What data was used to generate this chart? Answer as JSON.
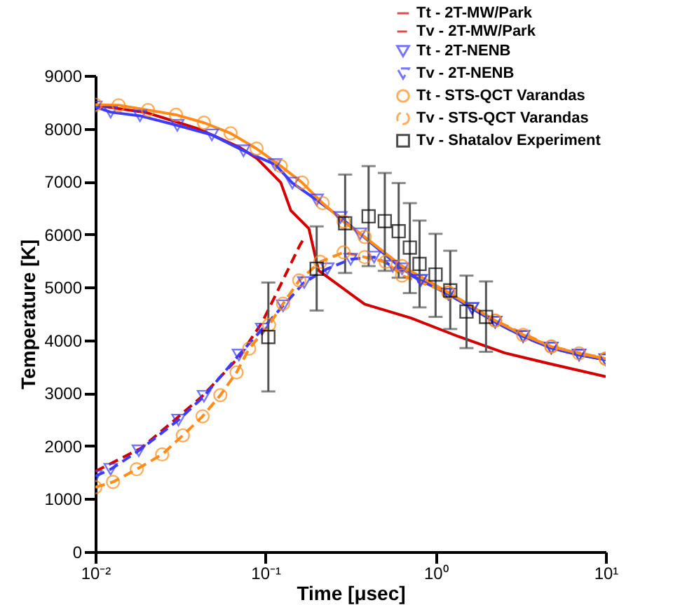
{
  "chart_data": {
    "type": "line",
    "xlabel": "Time [μsec]",
    "ylabel": "Temperature [K]",
    "log": "x",
    "grid": false,
    "legend": "top right",
    "xlim": [
      0.01,
      10
    ],
    "xticks": [
      {
        "value": 0.01,
        "label": "10⁻²"
      },
      {
        "value": 0.1,
        "label": "10⁻¹"
      },
      {
        "value": 1,
        "label": "10⁰"
      },
      {
        "value": 10,
        "label": "10¹"
      }
    ],
    "ylim": [
      0,
      9000
    ],
    "yticks": [
      0,
      1000,
      2000,
      3000,
      4000,
      5000,
      6000,
      7000,
      8000,
      9000
    ],
    "series": [
      {
        "name": "Tt - 2T-MW/Park",
        "color": "#d40000",
        "marker": "none",
        "line_style": "solid",
        "x": [
          0.01,
          0.02,
          0.04,
          0.07,
          0.0895,
          0.123,
          0.141,
          0.18,
          0.205,
          0.383,
          0.716,
          1.36,
          2.54,
          4.75,
          10
        ],
        "values": [
          8440,
          8300,
          8000,
          7650,
          7430,
          6980,
          6450,
          6110,
          5320,
          4680,
          4420,
          4070,
          3760,
          3550,
          3310
        ]
      },
      {
        "name": "Tv - 2T-MW/Park",
        "color": "#d40000",
        "marker": "none",
        "line_style": "dashed",
        "x": [
          0.01,
          0.0186,
          0.0271,
          0.0422,
          0.0698,
          0.0957,
          0.123,
          0.159,
          0.169
        ],
        "values": [
          1520,
          1960,
          2400,
          2930,
          3680,
          4340,
          5050,
          5790,
          5930
        ]
      },
      {
        "name": "Tt - 2T-NENB",
        "color": "#3c3cff",
        "marker": "triangle",
        "line_style": "solid",
        "x": [
          0.01,
          0.0123,
          0.0183,
          0.0303,
          0.0484,
          0.0743,
          0.114,
          0.144,
          0.2,
          0.276,
          0.36,
          0.635,
          0.817,
          1.19,
          1.64,
          2.24,
          3.27,
          4.79,
          6.98,
          10
        ],
        "values": [
          8410,
          8310,
          8240,
          8060,
          7880,
          7580,
          7320,
          6970,
          6650,
          6320,
          6010,
          5350,
          5130,
          4870,
          4600,
          4340,
          4070,
          3850,
          3720,
          3630
        ]
      },
      {
        "name": "Tv - 2T-NENB",
        "color": "#3c3cff",
        "marker": "triangle",
        "line_style": "dashed",
        "x": [
          0.01,
          0.0123,
          0.018,
          0.0308,
          0.0435,
          0.0698,
          0.0957,
          0.127,
          0.169,
          0.231,
          0.317,
          0.435,
          0.56,
          0.817,
          1.19,
          1.64,
          2.24,
          3.27,
          4.79,
          6.98,
          10
        ],
        "values": [
          1430,
          1560,
          1910,
          2490,
          2940,
          3720,
          4210,
          4650,
          5090,
          5350,
          5530,
          5570,
          5400,
          5130,
          4870,
          4600,
          4340,
          4070,
          3850,
          3720,
          3630
        ]
      },
      {
        "name": "Tt - STS-QCT Varandas",
        "color": "#ff8c1a",
        "marker": "circle",
        "line_style": "solid",
        "x": [
          0.01,
          0.0137,
          0.0204,
          0.0298,
          0.0435,
          0.0624,
          0.0887,
          0.123,
          0.164,
          0.217,
          0.288,
          0.383,
          0.635,
          1.19,
          2.24,
          3.27,
          4.79,
          6.98,
          10
        ],
        "values": [
          8450,
          8440,
          8350,
          8260,
          8110,
          7910,
          7620,
          7290,
          6980,
          6590,
          6240,
          5950,
          5400,
          4900,
          4370,
          4100,
          3880,
          3750,
          3650
        ]
      },
      {
        "name": "Tv - STS-QCT Varandas",
        "color": "#ff8c1a",
        "marker": "circle",
        "line_style": "dashed",
        "x": [
          0.01,
          0.0127,
          0.0175,
          0.0247,
          0.0327,
          0.0427,
          0.0543,
          0.0676,
          0.0802,
          0.105,
          0.127,
          0.158,
          0.21,
          0.288,
          0.383,
          0.509,
          0.635,
          1.19,
          2.24,
          4.79,
          10
        ],
        "values": [
          1220,
          1320,
          1560,
          1840,
          2200,
          2560,
          2960,
          3390,
          3840,
          4290,
          4690,
          5130,
          5480,
          5660,
          5570,
          5480,
          5220,
          4900,
          4370,
          3880,
          3650
        ]
      },
      {
        "name": "Tv - Shatalov Experiment",
        "type": "scatter",
        "color": "#000000",
        "marker": "square",
        "x": [
          0.104,
          0.2,
          0.294,
          0.404,
          0.503,
          0.607,
          0.706,
          0.805,
          1.0,
          1.22,
          1.52,
          1.98
        ],
        "values": [
          4060,
          5350,
          6210,
          6340,
          6250,
          6060,
          5750,
          5440,
          5240,
          4940,
          4540,
          4440
        ],
        "errors": [
          [
            3030,
            5090
          ],
          [
            4560,
            6150
          ],
          [
            5270,
            7130
          ],
          [
            5400,
            7290
          ],
          [
            5310,
            7160
          ],
          [
            5180,
            6970
          ],
          [
            4890,
            6590
          ],
          [
            4620,
            6260
          ],
          [
            4440,
            6010
          ],
          [
            4210,
            5690
          ],
          [
            3850,
            5220
          ],
          [
            3780,
            5110
          ]
        ]
      }
    ]
  }
}
